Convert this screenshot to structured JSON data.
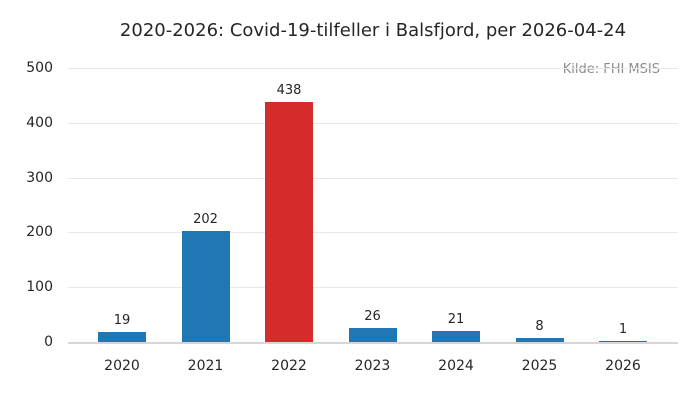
{
  "chart_data": {
    "type": "bar",
    "title": "2020-2026: Covid-19-tilfeller i Balsfjord, per 2026-04-24",
    "source_note": "Kilde: FHI MSIS",
    "categories": [
      "2020",
      "2021",
      "2022",
      "2023",
      "2024",
      "2025",
      "2026"
    ],
    "values": [
      19,
      202,
      438,
      26,
      21,
      8,
      1
    ],
    "value_labels": [
      "19",
      "202",
      "438",
      "26",
      "21",
      "8",
      "1"
    ],
    "bar_colors": [
      "#2077b4",
      "#2077b4",
      "#d62b2b",
      "#2077b4",
      "#2077b4",
      "#2077b4",
      "#2077b4"
    ],
    "xlabel": "",
    "ylabel": "",
    "ylim": [
      0,
      500
    ],
    "yticks": [
      0,
      100,
      200,
      300,
      400,
      500
    ],
    "grid": "horizontal-only",
    "legend": "none",
    "colors": {
      "default_bar": "#2077b4",
      "highlight_bar": "#d62b2b",
      "gridline": "#e8e8e8",
      "axis_line": "#d6d6d6",
      "text": "#262626",
      "source_text": "#8c8c8c"
    }
  }
}
